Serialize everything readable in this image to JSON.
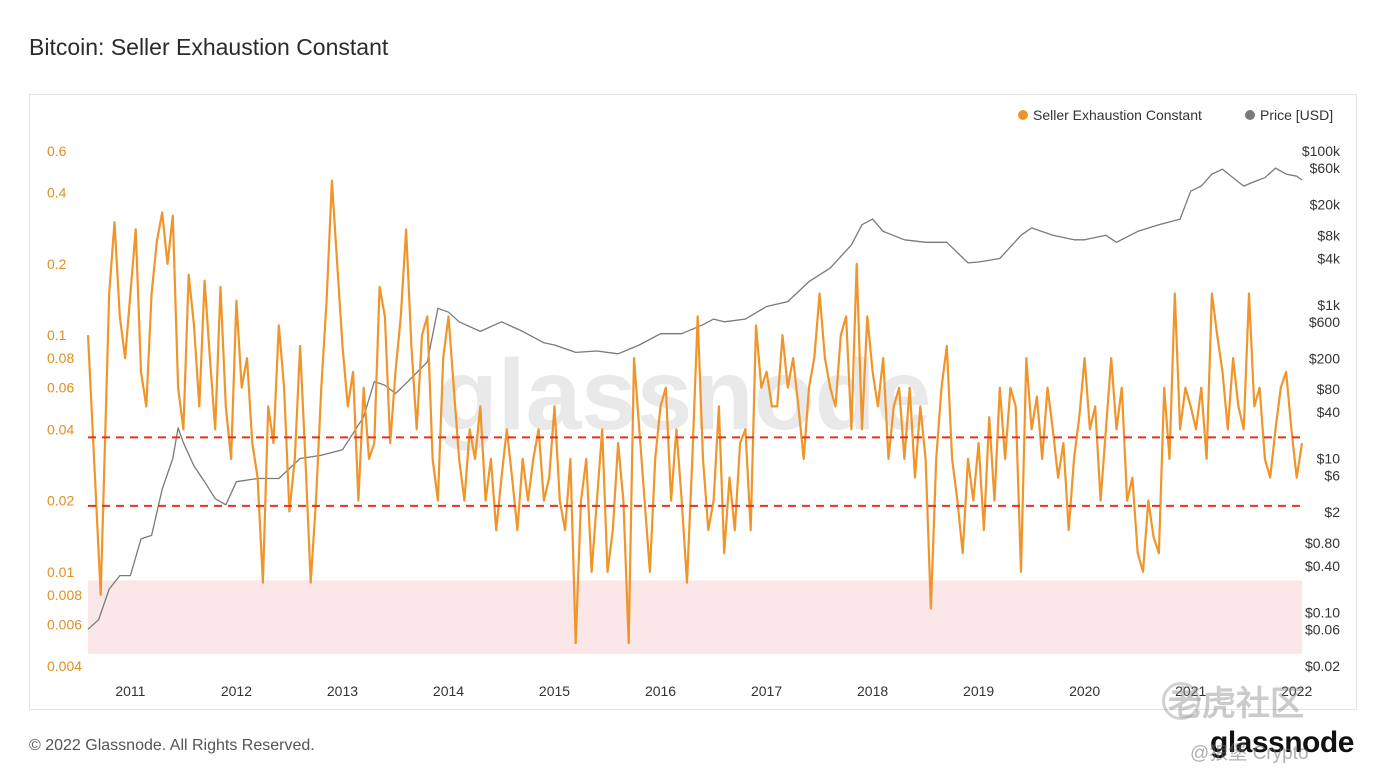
{
  "header": {
    "title": "Bitcoin: Seller Exhaustion Constant"
  },
  "footer": {
    "copyright": "© 2022 Glassnode. All Rights Reserved.",
    "logo_text": "glassnode"
  },
  "watermark": {
    "center_text": "glassnode",
    "cn_text": "老虎社区",
    "handle": "@狼堡 Crypto"
  },
  "colors": {
    "sec": "#f0952a",
    "price": "#7a7a7a",
    "threshold": "#e3331f",
    "zone": "#fbe6e8",
    "left_axis_text": "#e0901f",
    "right_axis_text": "#333333"
  },
  "chart_data": {
    "type": "line",
    "title": "Bitcoin: Seller Exhaustion Constant",
    "legend_position": "top-right",
    "grid": false,
    "x_ticks": [
      "2011",
      "2012",
      "2013",
      "2014",
      "2015",
      "2016",
      "2017",
      "2018",
      "2019",
      "2020",
      "2021",
      "2022"
    ],
    "xlim": [
      2010.6,
      2022.05
    ],
    "y_left": {
      "scale": "log",
      "lim": [
        0.004,
        0.6
      ],
      "ticks": [
        {
          "v": 0.6,
          "label": "0.6"
        },
        {
          "v": 0.4,
          "label": "0.4"
        },
        {
          "v": 0.2,
          "label": "0.2"
        },
        {
          "v": 0.1,
          "label": "0.1"
        },
        {
          "v": 0.08,
          "label": "0.08"
        },
        {
          "v": 0.06,
          "label": "0.06"
        },
        {
          "v": 0.04,
          "label": "0.04"
        },
        {
          "v": 0.02,
          "label": "0.02"
        },
        {
          "v": 0.01,
          "label": "0.01"
        },
        {
          "v": 0.008,
          "label": "0.008"
        },
        {
          "v": 0.006,
          "label": "0.006"
        },
        {
          "v": 0.004,
          "label": "0.004"
        }
      ]
    },
    "y_right": {
      "scale": "log",
      "lim": [
        0.02,
        100000
      ],
      "ticks": [
        {
          "v": 100000,
          "label": "$100k"
        },
        {
          "v": 60000,
          "label": "$60k"
        },
        {
          "v": 20000,
          "label": "$20k"
        },
        {
          "v": 8000,
          "label": "$8k"
        },
        {
          "v": 4000,
          "label": "$4k"
        },
        {
          "v": 1000,
          "label": "$1k"
        },
        {
          "v": 600,
          "label": "$600"
        },
        {
          "v": 200,
          "label": "$200"
        },
        {
          "v": 80,
          "label": "$80"
        },
        {
          "v": 40,
          "label": "$40"
        },
        {
          "v": 10,
          "label": "$10"
        },
        {
          "v": 6,
          "label": "$6"
        },
        {
          "v": 2,
          "label": "$2"
        },
        {
          "v": 0.8,
          "label": "$0.80"
        },
        {
          "v": 0.4,
          "label": "$0.40"
        },
        {
          "v": 0.1,
          "label": "$0.10"
        },
        {
          "v": 0.06,
          "label": "$0.06"
        },
        {
          "v": 0.02,
          "label": "$0.02"
        }
      ]
    },
    "threshold_lines": [
      0.037,
      0.019
    ],
    "bottom_zone": [
      0.0045,
      0.0092
    ],
    "series": [
      {
        "name": "Seller Exhaustion Constant",
        "axis": "left",
        "x": [
          2010.6,
          2010.65,
          2010.72,
          2010.8,
          2010.85,
          2010.9,
          2010.95,
          2011.0,
          2011.05,
          2011.1,
          2011.15,
          2011.2,
          2011.25,
          2011.3,
          2011.35,
          2011.4,
          2011.45,
          2011.5,
          2011.55,
          2011.6,
          2011.65,
          2011.7,
          2011.75,
          2011.8,
          2011.85,
          2011.9,
          2011.95,
          2012.0,
          2012.05,
          2012.1,
          2012.15,
          2012.2,
          2012.25,
          2012.3,
          2012.35,
          2012.4,
          2012.45,
          2012.5,
          2012.55,
          2012.6,
          2012.65,
          2012.7,
          2012.75,
          2012.8,
          2012.85,
          2012.9,
          2012.95,
          2013.0,
          2013.05,
          2013.1,
          2013.15,
          2013.2,
          2013.25,
          2013.3,
          2013.35,
          2013.4,
          2013.45,
          2013.5,
          2013.55,
          2013.6,
          2013.65,
          2013.7,
          2013.75,
          2013.8,
          2013.85,
          2013.9,
          2013.95,
          2014.0,
          2014.05,
          2014.1,
          2014.15,
          2014.2,
          2014.25,
          2014.3,
          2014.35,
          2014.4,
          2014.45,
          2014.5,
          2014.55,
          2014.6,
          2014.65,
          2014.7,
          2014.75,
          2014.8,
          2014.85,
          2014.9,
          2014.95,
          2015.0,
          2015.05,
          2015.1,
          2015.15,
          2015.2,
          2015.25,
          2015.3,
          2015.35,
          2015.4,
          2015.45,
          2015.5,
          2015.55,
          2015.6,
          2015.65,
          2015.7,
          2015.75,
          2015.8,
          2015.85,
          2015.9,
          2015.95,
          2016.0,
          2016.05,
          2016.1,
          2016.15,
          2016.2,
          2016.25,
          2016.3,
          2016.35,
          2016.4,
          2016.45,
          2016.5,
          2016.55,
          2016.6,
          2016.65,
          2016.7,
          2016.75,
          2016.8,
          2016.85,
          2016.9,
          2016.95,
          2017.0,
          2017.05,
          2017.1,
          2017.15,
          2017.2,
          2017.25,
          2017.3,
          2017.35,
          2017.4,
          2017.45,
          2017.5,
          2017.55,
          2017.6,
          2017.65,
          2017.7,
          2017.75,
          2017.8,
          2017.85,
          2017.9,
          2017.95,
          2018.0,
          2018.05,
          2018.1,
          2018.15,
          2018.2,
          2018.25,
          2018.3,
          2018.35,
          2018.4,
          2018.45,
          2018.5,
          2018.55,
          2018.6,
          2018.65,
          2018.7,
          2018.75,
          2018.8,
          2018.85,
          2018.9,
          2018.95,
          2019.0,
          2019.05,
          2019.1,
          2019.15,
          2019.2,
          2019.25,
          2019.3,
          2019.35,
          2019.4,
          2019.45,
          2019.5,
          2019.55,
          2019.6,
          2019.65,
          2019.7,
          2019.75,
          2019.8,
          2019.85,
          2019.9,
          2019.95,
          2020.0,
          2020.05,
          2020.1,
          2020.15,
          2020.2,
          2020.25,
          2020.3,
          2020.35,
          2020.4,
          2020.45,
          2020.5,
          2020.55,
          2020.6,
          2020.65,
          2020.7,
          2020.75,
          2020.8,
          2020.85,
          2020.9,
          2020.95,
          2021.0,
          2021.05,
          2021.1,
          2021.15,
          2021.2,
          2021.25,
          2021.3,
          2021.35,
          2021.4,
          2021.45,
          2021.5,
          2021.55,
          2021.6,
          2021.65,
          2021.7,
          2021.75,
          2021.8,
          2021.85,
          2021.9,
          2021.95,
          2022.0,
          2022.05
        ],
        "values": [
          0.1,
          0.035,
          0.008,
          0.15,
          0.3,
          0.12,
          0.08,
          0.15,
          0.28,
          0.07,
          0.05,
          0.15,
          0.25,
          0.33,
          0.2,
          0.32,
          0.06,
          0.04,
          0.18,
          0.11,
          0.05,
          0.17,
          0.08,
          0.04,
          0.16,
          0.05,
          0.03,
          0.14,
          0.06,
          0.08,
          0.035,
          0.025,
          0.009,
          0.05,
          0.035,
          0.11,
          0.06,
          0.018,
          0.03,
          0.09,
          0.03,
          0.009,
          0.02,
          0.06,
          0.14,
          0.45,
          0.2,
          0.09,
          0.05,
          0.07,
          0.02,
          0.06,
          0.03,
          0.035,
          0.16,
          0.12,
          0.035,
          0.07,
          0.12,
          0.28,
          0.09,
          0.04,
          0.1,
          0.12,
          0.03,
          0.02,
          0.08,
          0.12,
          0.06,
          0.03,
          0.02,
          0.04,
          0.03,
          0.05,
          0.02,
          0.03,
          0.015,
          0.025,
          0.04,
          0.025,
          0.015,
          0.03,
          0.02,
          0.03,
          0.04,
          0.02,
          0.025,
          0.05,
          0.02,
          0.015,
          0.03,
          0.005,
          0.02,
          0.03,
          0.01,
          0.02,
          0.04,
          0.01,
          0.015,
          0.035,
          0.02,
          0.005,
          0.08,
          0.04,
          0.02,
          0.01,
          0.03,
          0.05,
          0.06,
          0.02,
          0.04,
          0.02,
          0.009,
          0.03,
          0.12,
          0.03,
          0.015,
          0.02,
          0.05,
          0.012,
          0.025,
          0.015,
          0.035,
          0.04,
          0.015,
          0.11,
          0.06,
          0.07,
          0.05,
          0.05,
          0.1,
          0.06,
          0.08,
          0.05,
          0.03,
          0.06,
          0.08,
          0.15,
          0.08,
          0.06,
          0.05,
          0.1,
          0.12,
          0.04,
          0.2,
          0.04,
          0.12,
          0.07,
          0.05,
          0.08,
          0.03,
          0.05,
          0.06,
          0.03,
          0.06,
          0.025,
          0.05,
          0.03,
          0.007,
          0.03,
          0.06,
          0.09,
          0.03,
          0.02,
          0.012,
          0.03,
          0.02,
          0.035,
          0.015,
          0.045,
          0.02,
          0.06,
          0.03,
          0.06,
          0.05,
          0.01,
          0.08,
          0.04,
          0.055,
          0.03,
          0.06,
          0.04,
          0.025,
          0.035,
          0.015,
          0.03,
          0.045,
          0.08,
          0.04,
          0.05,
          0.02,
          0.04,
          0.08,
          0.04,
          0.06,
          0.02,
          0.025,
          0.012,
          0.01,
          0.02,
          0.014,
          0.012,
          0.06,
          0.03,
          0.15,
          0.04,
          0.06,
          0.05,
          0.04,
          0.06,
          0.03,
          0.15,
          0.1,
          0.07,
          0.04,
          0.08,
          0.05,
          0.04,
          0.15,
          0.05,
          0.06,
          0.03,
          0.025,
          0.04,
          0.06,
          0.07,
          0.04,
          0.025,
          0.035
        ]
      },
      {
        "name": "Price [USD]",
        "axis": "right",
        "x": [
          2010.6,
          2010.7,
          2010.8,
          2010.9,
          2011.0,
          2011.1,
          2011.2,
          2011.3,
          2011.4,
          2011.45,
          2011.5,
          2011.6,
          2011.7,
          2011.8,
          2011.9,
          2012.0,
          2012.2,
          2012.4,
          2012.6,
          2012.8,
          2013.0,
          2013.2,
          2013.3,
          2013.4,
          2013.5,
          2013.6,
          2013.8,
          2013.9,
          2014.0,
          2014.1,
          2014.3,
          2014.5,
          2014.7,
          2014.9,
          2015.0,
          2015.2,
          2015.4,
          2015.6,
          2015.8,
          2016.0,
          2016.2,
          2016.4,
          2016.5,
          2016.6,
          2016.8,
          2017.0,
          2017.2,
          2017.4,
          2017.6,
          2017.8,
          2017.9,
          2018.0,
          2018.1,
          2018.3,
          2018.5,
          2018.7,
          2018.9,
          2019.0,
          2019.2,
          2019.4,
          2019.5,
          2019.7,
          2019.9,
          2020.0,
          2020.2,
          2020.3,
          2020.5,
          2020.7,
          2020.9,
          2021.0,
          2021.1,
          2021.2,
          2021.3,
          2021.4,
          2021.5,
          2021.6,
          2021.7,
          2021.8,
          2021.9,
          2022.0,
          2022.05
        ],
        "values": [
          0.06,
          0.08,
          0.2,
          0.3,
          0.3,
          0.9,
          1.0,
          4.0,
          10,
          25,
          16,
          8,
          5,
          3,
          2.5,
          5,
          5.5,
          5.5,
          10,
          11,
          13,
          35,
          100,
          90,
          70,
          95,
          180,
          900,
          800,
          600,
          450,
          600,
          450,
          320,
          300,
          240,
          250,
          230,
          300,
          420,
          420,
          550,
          650,
          600,
          650,
          950,
          1100,
          2000,
          3000,
          6000,
          11000,
          13000,
          9000,
          7000,
          6500,
          6500,
          3500,
          3600,
          4000,
          8000,
          10000,
          8000,
          7000,
          7000,
          8000,
          6500,
          9000,
          11000,
          13000,
          30000,
          35000,
          50000,
          58000,
          45000,
          35000,
          40000,
          45000,
          60000,
          50000,
          47000,
          42000
        ]
      }
    ],
    "legend": [
      {
        "label": "Seller Exhaustion Constant"
      },
      {
        "label": "Price [USD]"
      }
    ]
  }
}
